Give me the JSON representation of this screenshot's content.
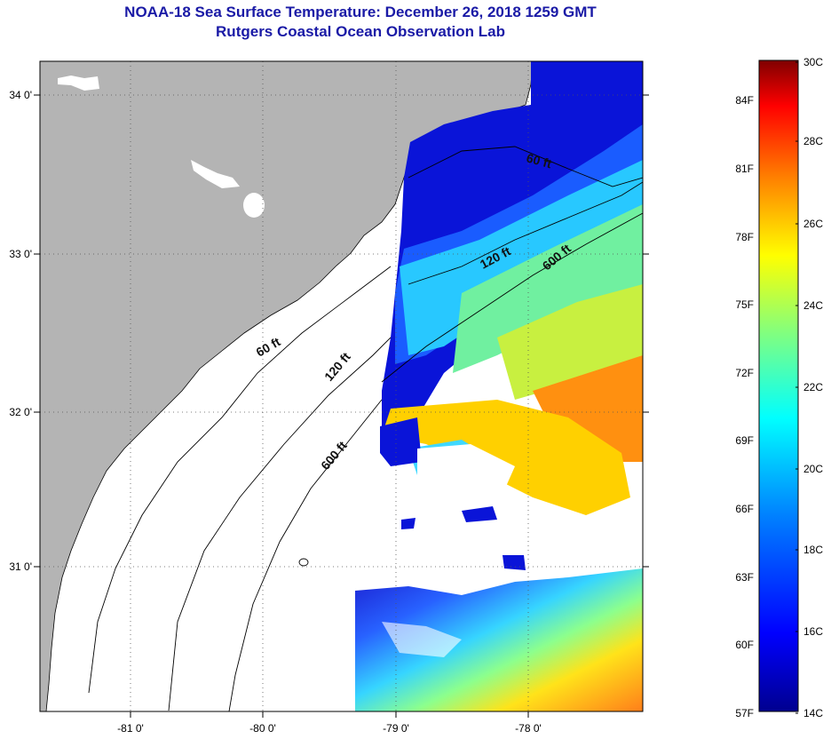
{
  "title": "NOAA-18 Sea Surface Temperature:  December 26, 2018 1259 GMT",
  "subtitle": "Rutgers Coastal Ocean Observation Lab",
  "map": {
    "lat_ticks": [
      "34 0'",
      "33 0'",
      "32 0'",
      "31 0'"
    ],
    "lon_ticks": [
      "-81 0'",
      "-80 0'",
      "-79 0'",
      "-78 0'"
    ],
    "contour_labels": [
      "60 ft",
      "120 ft",
      "600 ft",
      "60 ft",
      "120 ft",
      "600 ft"
    ]
  },
  "colorbar": {
    "fahrenheit_labels": [
      "84F",
      "81F",
      "78F",
      "75F",
      "72F",
      "69F",
      "66F",
      "63F",
      "60F",
      "57F"
    ],
    "celsius_labels": [
      "30C",
      "28C",
      "26C",
      "24C",
      "22C",
      "20C",
      "18C",
      "16C",
      "14C"
    ],
    "colors": [
      "#00008f",
      "#0000ff",
      "#0080ff",
      "#00ffff",
      "#80ff80",
      "#ffff00",
      "#ff8000",
      "#ff0000",
      "#800000"
    ]
  },
  "colors": {
    "land": "#b4b4b4",
    "water_nodata": "#ffffff",
    "title": "#1a1aa6"
  }
}
